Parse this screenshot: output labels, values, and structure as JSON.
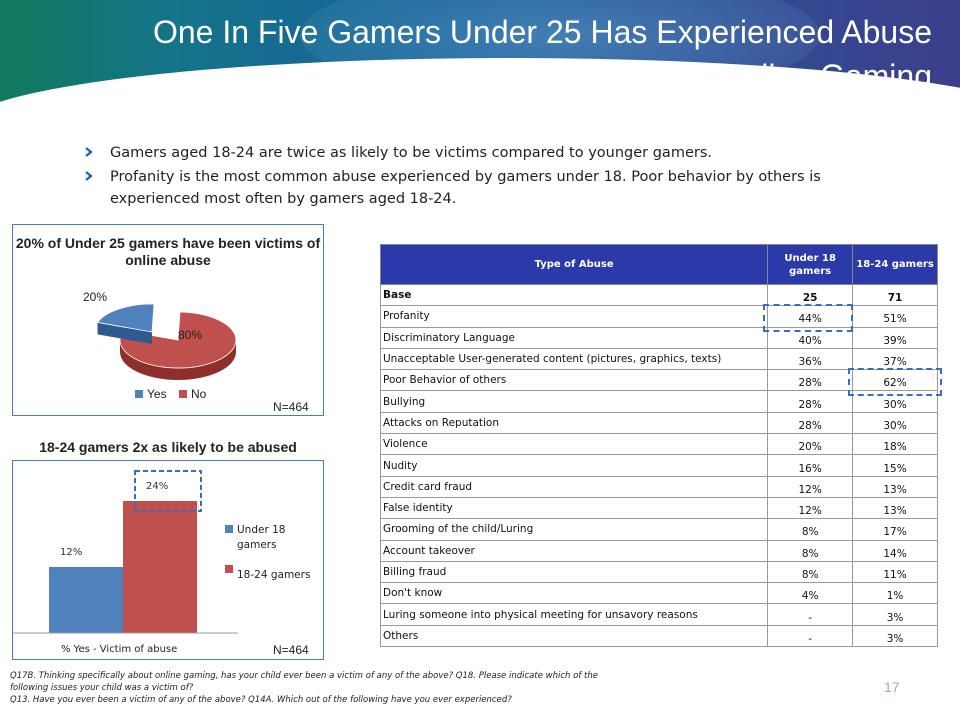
{
  "header": {
    "title": "One In Five Gamers Under 25 Has Experienced Abuse While Online Gaming"
  },
  "bullets": [
    "Gamers aged 18-24 are twice as likely to be victims compared to younger gamers.",
    "Profanity is the most common abuse experienced by gamers under 18.  Poor behavior by others is experienced most often by gamers aged 18-24."
  ],
  "pie_chart": {
    "title": "20% of Under 25 gamers have been victims of online abuse",
    "n_label": "N=464",
    "legend": [
      "Yes",
      "No"
    ],
    "colors": {
      "yes": "#4f81bd",
      "no": "#c0504d"
    }
  },
  "bar_chart": {
    "heading": "18-24 gamers 2x as likely to be abused",
    "n_label": "N=464",
    "colors": {
      "under18": "#4f81bd",
      "age1824": "#c0504d"
    }
  },
  "chart_data": [
    {
      "type": "pie",
      "title": "20% of Under 25 gamers have been victims of online abuse",
      "labels": [
        "Yes",
        "No"
      ],
      "values": [
        20,
        80
      ],
      "data_labels": [
        "20%",
        "80%"
      ]
    },
    {
      "type": "bar",
      "categories": [
        "% Yes - Victim of abuse"
      ],
      "series": [
        {
          "name": "Under 18 gamers",
          "values": [
            12
          ],
          "label": "12%"
        },
        {
          "name": "18-24 gamers",
          "values": [
            24
          ],
          "label": "24%"
        }
      ],
      "title": "18-24 gamers 2x as likely to be abused",
      "ylim": [
        0,
        28
      ]
    }
  ],
  "table": {
    "headers": [
      "Type of Abuse",
      "Under 18 gamers",
      "18-24 gamers"
    ],
    "base": {
      "label": "Base",
      "under18": "25",
      "age1824": "71"
    },
    "rows": [
      {
        "label": "Profanity",
        "under18": "44%",
        "age1824": "51%"
      },
      {
        "label": "Discriminatory Language",
        "under18": "40%",
        "age1824": "39%"
      },
      {
        "label": "Unacceptable User-generated content (pictures, graphics, texts)",
        "under18": "36%",
        "age1824": "37%"
      },
      {
        "label": "Poor Behavior of others",
        "under18": "28%",
        "age1824": "62%"
      },
      {
        "label": "Bullying",
        "under18": "28%",
        "age1824": "30%"
      },
      {
        "label": "Attacks on  Reputation",
        "under18": "28%",
        "age1824": "30%"
      },
      {
        "label": "Violence",
        "under18": "20%",
        "age1824": "18%"
      },
      {
        "label": "Nudity",
        "under18": "16%",
        "age1824": "15%"
      },
      {
        "label": "Credit card fraud",
        "under18": "12%",
        "age1824": "13%"
      },
      {
        "label": "False identity",
        "under18": "12%",
        "age1824": "13%"
      },
      {
        "label": "Grooming of the child/Luring",
        "under18": "8%",
        "age1824": "17%"
      },
      {
        "label": "Account takeover",
        "under18": "8%",
        "age1824": "14%"
      },
      {
        "label": "Billing fraud",
        "under18": "8%",
        "age1824": "11%"
      },
      {
        "label": "Don't know",
        "under18": "4%",
        "age1824": "1%"
      },
      {
        "label": "Luring someone into physical meeting for unsavory reasons",
        "under18": "-",
        "age1824": "3%"
      },
      {
        "label": "Others",
        "under18": "-",
        "age1824": "3%"
      }
    ]
  },
  "footnote": [
    "Q17B. Thinking specifically about online gaming, has your child ever been a victim of any of the above? Q18. Please indicate which of the",
    "following issues your child was a victim of?",
    "Q13.  Have you ever been a victim of any of the above? Q14A. Which out of the following have you ever experienced?"
  ],
  "page_number": "17"
}
